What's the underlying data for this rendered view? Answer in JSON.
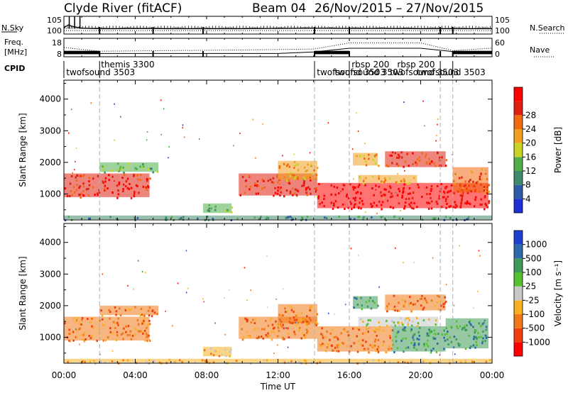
{
  "header": {
    "station": "Clyde River (fitACF)",
    "beam": "Beam 04",
    "dates": "26/Nov/2015 – 27/Nov/2015"
  },
  "colors": {
    "power": [
      "#1f2fd8",
      "#2f5aa8",
      "#3f8a6a",
      "#4fae4a",
      "#c8d424",
      "#f0a020",
      "#f06a10",
      "#e02010",
      "#ff0000"
    ],
    "velocity": [
      "#ff0000",
      "#f04010",
      "#f07818",
      "#f8b020",
      "#c8c8c8",
      "#58c030",
      "#3f9a5a",
      "#2f6aa8",
      "#1f3fd0"
    ]
  },
  "chart_data": [
    {
      "type": "line",
      "panel": "noise",
      "left_label": "N.Sky",
      "right_label": "N.Search",
      "left_ticks": [
        "10^5",
        "10^0"
      ],
      "right_ticks": [
        "10^5",
        "10^0"
      ],
      "scale": "log",
      "series": [
        {
          "name": "N.Sky",
          "x": [
            0,
            0.25,
            0.5,
            1,
            2,
            3,
            4,
            6,
            8,
            10,
            12,
            14,
            16,
            18,
            20,
            22,
            24
          ],
          "y": [
            1.6,
            2.6,
            2.0,
            1.4,
            1.2,
            1.2,
            1.3,
            1.2,
            1.2,
            1.2,
            1.3,
            1.4,
            1.3,
            1.3,
            1.2,
            1.2,
            1.2
          ]
        },
        {
          "name": "N.Search",
          "x": [
            0,
            4,
            8,
            12,
            16,
            20,
            24
          ],
          "y": [
            0.5,
            0.5,
            0.5,
            0.5,
            0.5,
            0.5,
            0.5
          ]
        }
      ],
      "xlim": [
        0,
        24
      ]
    },
    {
      "type": "line",
      "panel": "freq-nave",
      "left_label_1": "Freq.",
      "left_label_2": "[MHz]",
      "right_label": "Nave",
      "left_ticks": [
        "18",
        "8"
      ],
      "right_ticks": [
        "60",
        "0"
      ],
      "series": [
        {
          "name": "Freq.",
          "x": [
            0,
            2,
            4,
            8,
            12,
            14,
            16,
            20,
            22,
            24
          ],
          "y": [
            10.6,
            9.8,
            9.8,
            9.8,
            9.8,
            10.6,
            12.6,
            12.6,
            10.6,
            10.6
          ]
        },
        {
          "name": "Nave",
          "x": [
            0,
            2,
            6,
            10,
            14,
            16,
            20,
            21.8,
            24
          ],
          "y": [
            30,
            18,
            20,
            22,
            25,
            45,
            45,
            20,
            28
          ]
        }
      ],
      "xlim": [
        0,
        24
      ]
    },
    {
      "type": "table",
      "panel": "cpid",
      "label": "CPID",
      "programs": [
        {
          "name": "themis 3300",
          "start": 2.0,
          "row": 0
        },
        {
          "name": "twofsound 3503",
          "start": 0.05,
          "row": 1
        },
        {
          "name": "rbsp 200",
          "start": 16.05,
          "row": 0
        },
        {
          "name": "twofsound 3503",
          "start": 14.1,
          "row": 1
        },
        {
          "name": "twofsound 3503",
          "start": 15.1,
          "row": 1
        },
        {
          "name": "rbsp 200",
          "start": 18.6,
          "row": 0
        },
        {
          "name": "twofsound 3503",
          "start": 18.2,
          "row": 1
        },
        {
          "name": "twofsound 3503",
          "start": 19.7,
          "row": 1
        }
      ],
      "boundaries": [
        2.0,
        14.05,
        16.0,
        21.1,
        21.8
      ],
      "xlim": [
        0,
        24
      ]
    },
    {
      "type": "heatmap",
      "panel": "power",
      "ylabel": "Slant Range [km]",
      "xlabel": "",
      "yticks": [
        "1000",
        "2000",
        "3000",
        "4000"
      ],
      "ylim": [
        180,
        4600
      ],
      "colorbar_label": "Power [dB]",
      "colorbar_ticks": [
        "4",
        "8",
        "12",
        "16",
        "20",
        "24",
        "28"
      ],
      "colorbar_range": [
        0,
        32
      ],
      "regions": [
        {
          "t0": 0.0,
          "t1": 4.8,
          "r0": 900,
          "r1": 1650,
          "v": 25
        },
        {
          "t0": 2.0,
          "t1": 5.3,
          "r0": 1700,
          "r1": 2000,
          "v": 13
        },
        {
          "t0": 7.8,
          "t1": 9.4,
          "r0": 400,
          "r1": 700,
          "v": 14
        },
        {
          "t0": 9.8,
          "t1": 14.2,
          "r0": 950,
          "r1": 1650,
          "v": 25
        },
        {
          "t0": 12.0,
          "t1": 14.2,
          "r0": 1450,
          "r1": 2050,
          "v": 18
        },
        {
          "t0": 14.2,
          "t1": 23.8,
          "r0": 550,
          "r1": 1350,
          "v": 29
        },
        {
          "t0": 16.2,
          "t1": 17.6,
          "r0": 1900,
          "r1": 2300,
          "v": 21
        },
        {
          "t0": 18.0,
          "t1": 21.4,
          "r0": 1850,
          "r1": 2350,
          "v": 28
        },
        {
          "t0": 16.5,
          "t1": 19.8,
          "r0": 1350,
          "r1": 1600,
          "v": 20
        },
        {
          "t0": 21.8,
          "t1": 23.8,
          "r0": 1050,
          "r1": 1850,
          "v": 22
        },
        {
          "t0": 0.0,
          "t1": 24.0,
          "r0": 200,
          "r1": 320,
          "v": 10
        }
      ],
      "xlim": [
        0,
        24
      ]
    },
    {
      "type": "heatmap",
      "panel": "velocity",
      "ylabel": "Slant Range [km]",
      "xlabel": "Time UT",
      "yticks": [
        "1000",
        "2000",
        "3000",
        "4000"
      ],
      "xticks": [
        "00:00",
        "04:00",
        "08:00",
        "12:00",
        "16:00",
        "20:00",
        "00:00"
      ],
      "ylim": [
        180,
        4600
      ],
      "colorbar_label": "Velocity [m s⁻¹]",
      "colorbar_ticks": [
        "-1000",
        "-500",
        "-100",
        "-25",
        "25",
        "100",
        "500",
        "1000"
      ],
      "colorbar_range": [
        -1200,
        1200
      ],
      "regions": [
        {
          "t0": 0.0,
          "t1": 4.8,
          "r0": 900,
          "r1": 1650,
          "v": -150
        },
        {
          "t0": 2.0,
          "t1": 5.3,
          "r0": 1700,
          "r1": 2000,
          "v": -120
        },
        {
          "t0": 7.8,
          "t1": 9.4,
          "r0": 400,
          "r1": 700,
          "v": -90
        },
        {
          "t0": 9.8,
          "t1": 14.2,
          "r0": 950,
          "r1": 1650,
          "v": -400
        },
        {
          "t0": 12.0,
          "t1": 14.2,
          "r0": 1450,
          "r1": 2050,
          "v": -450
        },
        {
          "t0": 14.2,
          "t1": 18.4,
          "r0": 550,
          "r1": 1350,
          "v": -300
        },
        {
          "t0": 18.4,
          "t1": 21.4,
          "r0": 550,
          "r1": 1350,
          "v": 180
        },
        {
          "t0": 21.4,
          "t1": 23.8,
          "r0": 650,
          "r1": 1600,
          "v": 120
        },
        {
          "t0": 16.2,
          "t1": 17.6,
          "r0": 1900,
          "r1": 2300,
          "v": 300
        },
        {
          "t0": 18.0,
          "t1": 21.4,
          "r0": 1850,
          "r1": 2350,
          "v": -150
        },
        {
          "t0": 16.5,
          "t1": 21.0,
          "r0": 1350,
          "r1": 1650,
          "v": 0
        },
        {
          "t0": 0.0,
          "t1": 24.0,
          "r0": 200,
          "r1": 320,
          "v": -60
        }
      ],
      "xlim": [
        0,
        24
      ]
    }
  ]
}
